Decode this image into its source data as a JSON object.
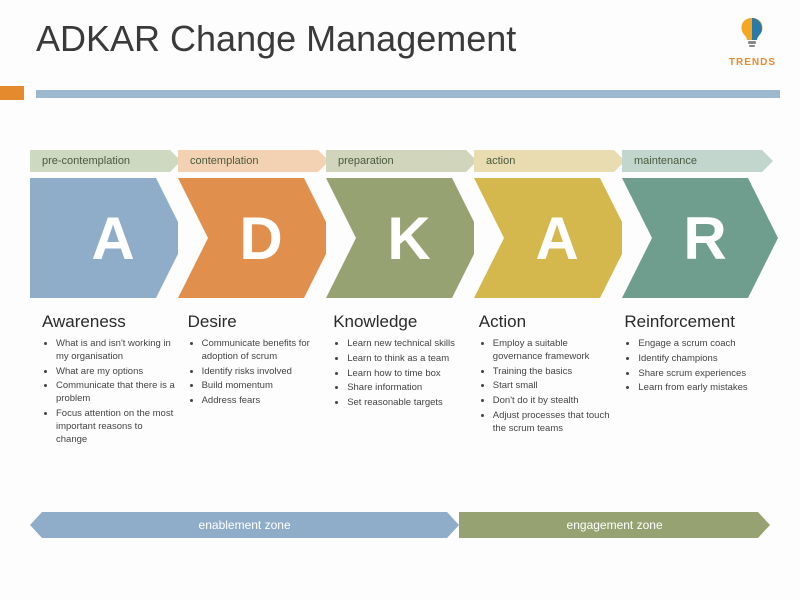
{
  "title": "ADKAR Change Management",
  "logo": {
    "label": "TRENDS",
    "color_top": "#f5a623",
    "color_bottom": "#2a7aa8"
  },
  "header_bar": {
    "accent_color": "#e68a2e",
    "bar_color": "#9db8ce"
  },
  "stages": [
    {
      "label": "pre-contemplation",
      "label_bg": "#cdd9c0",
      "letter": "A",
      "color": "#8fadc8"
    },
    {
      "label": "contemplation",
      "label_bg": "#f3d2b3",
      "letter": "D",
      "color": "#e08f4c"
    },
    {
      "label": "preparation",
      "label_bg": "#d0d5bb",
      "letter": "K",
      "color": "#97a273"
    },
    {
      "label": "action",
      "label_bg": "#e8dcb0",
      "letter": "A",
      "color": "#d4b84e"
    },
    {
      "label": "maintenance",
      "label_bg": "#c3d6cd",
      "letter": "R",
      "color": "#6f9e8e"
    }
  ],
  "columns": [
    {
      "title": "Awareness",
      "bullets": [
        "What is and isn't working in my organisation",
        "What are my options",
        "Communicate that there is a problem",
        "Focus attention on the most important reasons to change"
      ]
    },
    {
      "title": "Desire",
      "bullets": [
        "Communicate benefits for adoption of scrum",
        "Identify risks involved",
        "Build momentum",
        "Address fears"
      ]
    },
    {
      "title": "Knowledge",
      "bullets": [
        "Learn new technical skills",
        "Learn to think as a team",
        "Learn how to time box",
        "Share information",
        "Set reasonable targets"
      ]
    },
    {
      "title": "Action",
      "bullets": [
        "Employ a suitable governance framework",
        "Training the basics",
        "Start small",
        "Don't do it by stealth",
        "Adjust processes that touch the scrum teams"
      ]
    },
    {
      "title": "Reinforcement",
      "bullets": [
        "Engage a scrum coach",
        "Identify champions",
        "Share scrum experiences",
        "Learn from early mistakes"
      ]
    }
  ],
  "zones": [
    {
      "label": "enablement zone",
      "color": "#8fadc8",
      "left_pct": 0,
      "width_pct": 58
    },
    {
      "label": "engagement zone",
      "color": "#97a273",
      "left_pct": 58,
      "width_pct": 42
    }
  ],
  "layout": {
    "chevron_width": 156,
    "chevron_overlap": 8,
    "chevron_head": 30,
    "label_text_color": "#4a5a3f"
  }
}
